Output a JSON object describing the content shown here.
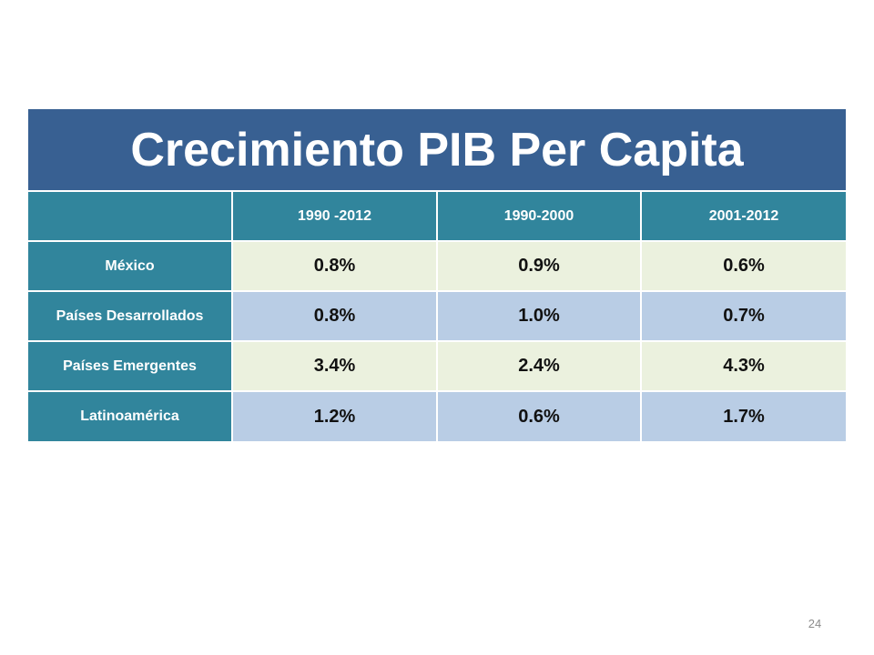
{
  "title": "Crecimiento PIB Per Capita",
  "columns": [
    "",
    "1990 -2012",
    "1990-2000",
    "2001-2012"
  ],
  "rows": [
    {
      "label": "México",
      "values": [
        "0.8%",
        "0.9%",
        "0.6%"
      ]
    },
    {
      "label": "Países Desarrollados",
      "values": [
        "0.8%",
        "1.0%",
        "0.7%"
      ]
    },
    {
      "label": "Países Emergentes",
      "values": [
        "3.4%",
        "2.4%",
        "4.3%"
      ]
    },
    {
      "label": "Latinoamérica",
      "values": [
        "1.2%",
        "0.6%",
        "1.7%"
      ]
    }
  ],
  "page_number": "24",
  "colors": {
    "title_bg": "#386092",
    "header_bg": "#31859c",
    "row_light": "#ebf1de",
    "row_blue": "#b9cde5"
  }
}
